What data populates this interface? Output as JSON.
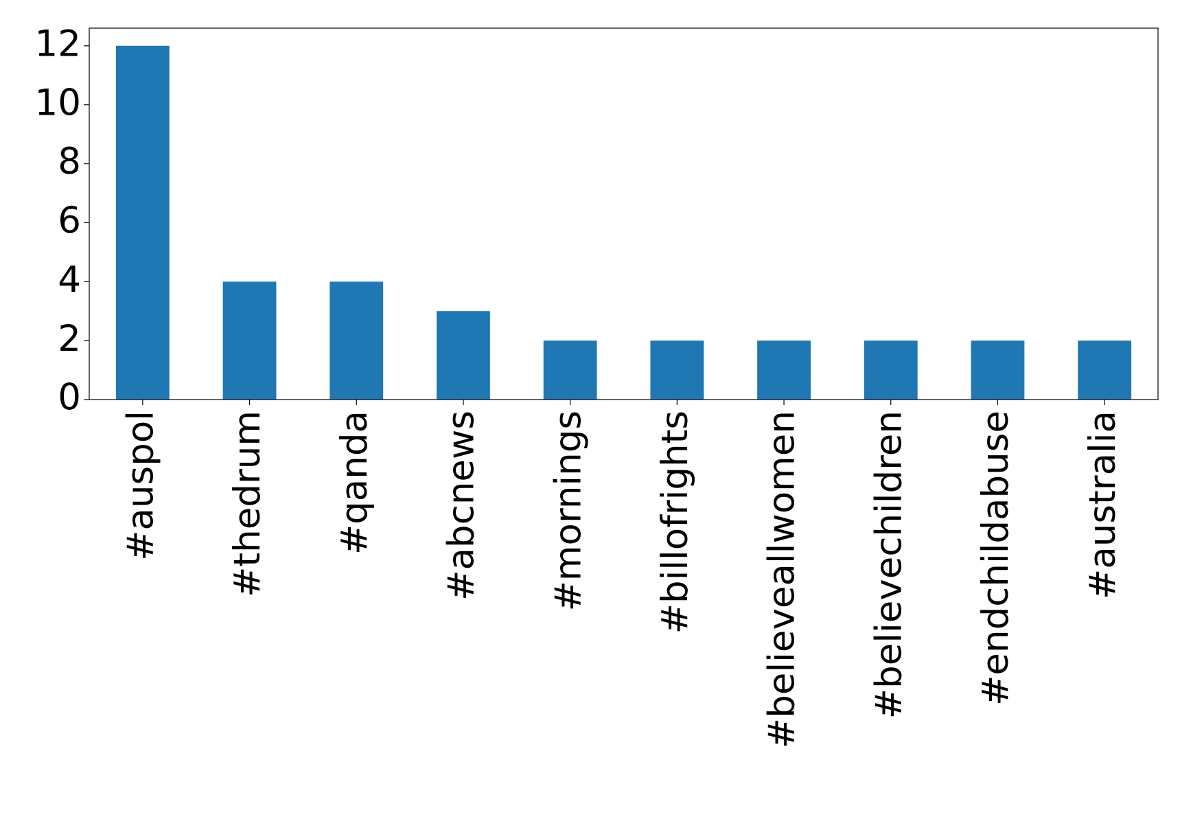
{
  "chart_data": {
    "type": "bar",
    "categories": [
      "#auspol",
      "#thedrum",
      "#qanda",
      "#abcnews",
      "#mornings",
      "#billofrights",
      "#believeallwomen",
      "#believechildren",
      "#endchildabuse",
      "#australia"
    ],
    "values": [
      12,
      4,
      4,
      3,
      2,
      2,
      2,
      2,
      2,
      2
    ],
    "color": "#1f77b4",
    "ylim": [
      0,
      12.6
    ],
    "yticks": [
      0,
      2,
      4,
      6,
      8,
      10,
      12
    ],
    "grid": false
  }
}
